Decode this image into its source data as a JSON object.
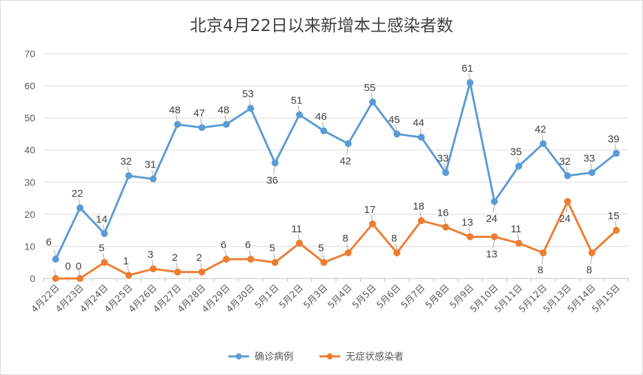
{
  "chart_data": {
    "type": "line",
    "title": "北京4月22日以来新增本土感染者数",
    "categories": [
      "4月22日",
      "4月23日",
      "4月24日",
      "4月25日",
      "4月26日",
      "4月27日",
      "4月28日",
      "4月29日",
      "4月30日",
      "5月1日",
      "5月2日",
      "5月3日",
      "5月4日",
      "5月5日",
      "5月6日",
      "5月7日",
      "5月8日",
      "5月9日",
      "5月10日",
      "5月11日",
      "5月12日",
      "5月13日",
      "5月14日",
      "5月15日"
    ],
    "series": [
      {
        "name": "确诊病例",
        "color": "#5b9bd5",
        "values": [
          6,
          22,
          14,
          32,
          31,
          48,
          47,
          48,
          53,
          36,
          51,
          46,
          42,
          55,
          45,
          44,
          33,
          61,
          24,
          35,
          42,
          32,
          33,
          39
        ]
      },
      {
        "name": "无症状感染者",
        "color": "#ed7d31",
        "values": [
          0,
          0,
          5,
          1,
          3,
          2,
          2,
          6,
          6,
          5,
          11,
          5,
          8,
          17,
          8,
          18,
          16,
          13,
          13,
          11,
          8,
          24,
          8,
          15
        ]
      }
    ],
    "ylim": [
      0,
      70
    ],
    "yticks": [
      0,
      10,
      20,
      30,
      40,
      50,
      60,
      70
    ],
    "grid": true,
    "legend": "bottom",
    "xlabel": "",
    "ylabel": ""
  }
}
